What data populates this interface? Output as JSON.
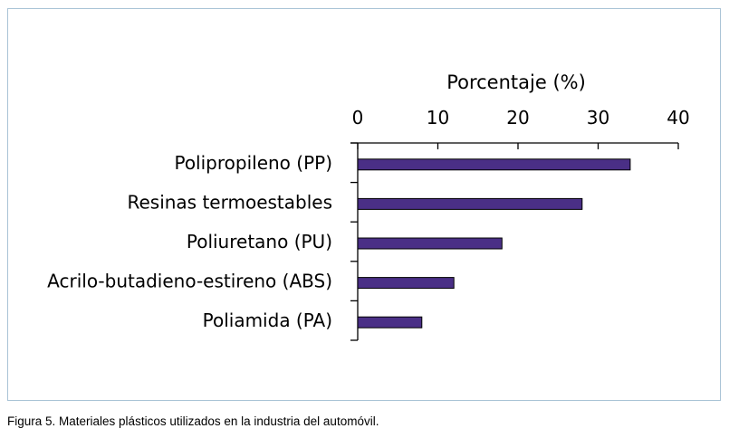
{
  "chart_data": {
    "type": "bar",
    "orientation": "horizontal",
    "xlabel": "Porcentaje (%)",
    "ylabel": "",
    "title": "",
    "xlim": [
      0,
      40
    ],
    "xticks": [
      0,
      10,
      20,
      30,
      40
    ],
    "xaxis_position": "top",
    "categories": [
      "Polipropileno (PP)",
      "Resinas termoestables",
      "Poliuretano (PU)",
      "Acrilo-butadieno-estireno (ABS)",
      "Poliamida (PA)"
    ],
    "values": [
      34,
      28,
      18,
      12,
      8
    ],
    "bar_color": "#4a2f86",
    "grid": false,
    "legend": "none"
  },
  "caption": "Figura 5. Materiales plásticos utilizados en la industria del automóvil."
}
